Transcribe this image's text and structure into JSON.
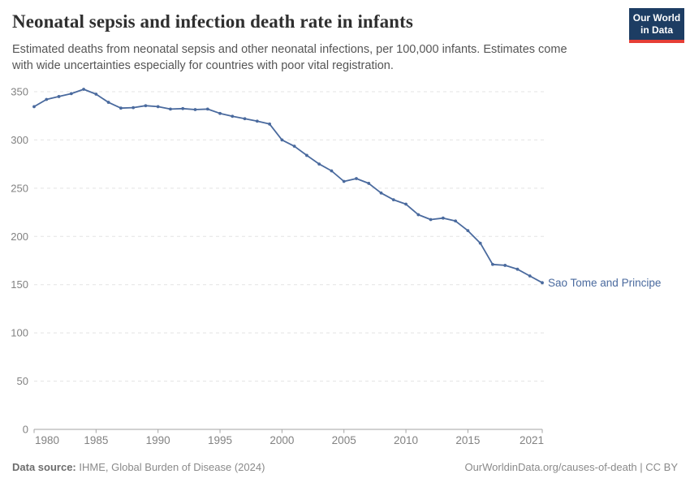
{
  "header": {
    "subtitle_lines": [
      "Estimated deaths from neonatal sepsis and other neonatal infections, per 100,000 infants. Estimates come",
      "with wide uncertainties especially for countries with poor vital registration."
    ],
    "logo": {
      "line1": "Our World",
      "line2": "in Data"
    }
  },
  "chart_data": {
    "type": "line",
    "title": "Neonatal sepsis and infection death rate in infants",
    "xlabel": "",
    "ylabel": "",
    "x": [
      1980,
      1981,
      1982,
      1983,
      1984,
      1985,
      1986,
      1987,
      1988,
      1989,
      1990,
      1991,
      1992,
      1993,
      1994,
      1995,
      1996,
      1997,
      1998,
      1999,
      2000,
      2001,
      2002,
      2003,
      2004,
      2005,
      2006,
      2007,
      2008,
      2009,
      2010,
      2011,
      2012,
      2013,
      2014,
      2015,
      2016,
      2017,
      2018,
      2019,
      2020,
      2021
    ],
    "series": [
      {
        "name": "Sao Tome and Principe",
        "values": [
          334.5,
          342,
          345,
          348,
          352.5,
          347.5,
          339,
          333,
          333.5,
          335.5,
          334.5,
          332,
          332.5,
          331.5,
          332,
          327.5,
          324.5,
          322,
          319.5,
          316.5,
          300,
          293.5,
          284,
          275,
          268,
          257,
          260,
          255,
          245,
          238,
          233.5,
          222.5,
          217.5,
          219,
          216,
          206,
          193,
          171,
          170,
          166,
          159,
          152
        ]
      }
    ],
    "ylim": [
      0,
      350
    ],
    "yticks": [
      0,
      50,
      100,
      150,
      200,
      250,
      300,
      350
    ],
    "xticks": [
      1980,
      1985,
      1990,
      1995,
      2000,
      2005,
      2010,
      2015,
      2021
    ],
    "grid": "horizontal-dashed",
    "legend": "end-of-line-label"
  },
  "footer": {
    "datasource_label": "Data source:",
    "datasource_value": " IHME, Global Burden of Disease (2024)",
    "credit": "OurWorldinData.org/causes-of-death | CC BY"
  },
  "colors": {
    "line": "#4a6a9e",
    "end_label": "#4a6a9e",
    "grid": "#e3e3e3",
    "axis": "#a3a3a3",
    "tick_text": "#828282",
    "logo_navy": "#1d3d63",
    "logo_red": "#e63e36"
  }
}
